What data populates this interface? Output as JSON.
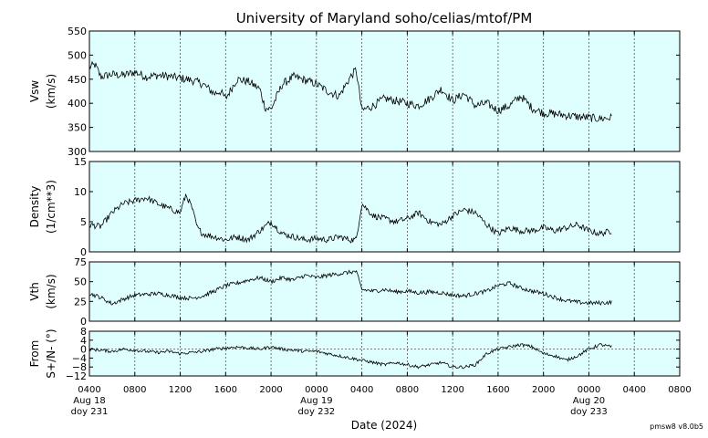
{
  "chart_data": {
    "title": "University of Maryland  soho/celias/mtof/PM",
    "xlabel": "Date (2024)",
    "footer": "pmsw8 v8.0b5",
    "x_ticks": [
      {
        "hour": 0,
        "label": "0400"
      },
      {
        "hour": 4,
        "label": "0800"
      },
      {
        "hour": 8,
        "label": "1200"
      },
      {
        "hour": 12,
        "label": "1600"
      },
      {
        "hour": 16,
        "label": "2000"
      },
      {
        "hour": 20,
        "label": "0000",
        "sub1": "Aug 19",
        "sub2": "doy 232"
      },
      {
        "hour": 24,
        "label": "0400"
      },
      {
        "hour": 28,
        "label": "0800"
      },
      {
        "hour": 32,
        "label": "1200"
      },
      {
        "hour": 36,
        "label": "1600"
      },
      {
        "hour": 40,
        "label": "2000"
      },
      {
        "hour": 44,
        "label": "0000",
        "sub1": "Aug 20",
        "sub2": "doy 233"
      },
      {
        "hour": 48,
        "label": "0400"
      },
      {
        "hour": 52,
        "label": "0800"
      }
    ],
    "first_tick": {
      "sub1": "Aug 18",
      "sub2": "doy 231"
    },
    "x_range_hours": [
      0,
      52
    ],
    "data_end_hour": 46,
    "panels": [
      {
        "type": "line",
        "ylabel_1": "Vsw",
        "ylabel_2": "(km/s)",
        "ylim": [
          300,
          550
        ],
        "yticks": [
          300,
          350,
          400,
          450,
          500,
          550
        ],
        "ytick_labels": [
          "300",
          "350",
          "400",
          "450",
          "500",
          "550"
        ],
        "zero_line": false,
        "x": [
          0,
          0.5,
          1,
          2,
          3,
          4,
          5,
          6,
          7,
          8,
          9,
          10,
          11,
          11.5,
          12,
          13,
          14,
          15,
          15.5,
          16,
          17,
          18,
          19,
          20,
          21,
          22,
          23,
          23.5,
          24,
          25,
          26,
          27,
          28,
          29,
          30,
          31,
          32,
          33,
          34,
          35,
          36,
          37,
          38,
          39,
          40,
          41,
          42,
          43,
          44,
          45,
          46
        ],
        "y": [
          475,
          480,
          455,
          460,
          458,
          465,
          455,
          458,
          456,
          452,
          448,
          440,
          420,
          425,
          410,
          450,
          445,
          430,
          390,
          388,
          440,
          455,
          448,
          440,
          425,
          415,
          455,
          470,
          385,
          395,
          410,
          405,
          400,
          395,
          410,
          430,
          405,
          420,
          395,
          400,
          385,
          395,
          415,
          390,
          380,
          378,
          375,
          372,
          370,
          368,
          370
        ]
      },
      {
        "type": "line",
        "ylabel_1": "Density",
        "ylabel_2": "(1/cm**3)",
        "ylim": [
          0,
          15
        ],
        "yticks": [
          0,
          5,
          10,
          15
        ],
        "ytick_labels": [
          "0",
          "5",
          "10",
          "15"
        ],
        "zero_line": false,
        "x": [
          0,
          1,
          2,
          3,
          4,
          5,
          6,
          7,
          8,
          8.5,
          9,
          9.5,
          10,
          11,
          12,
          13,
          14,
          15,
          16,
          17,
          18,
          19,
          20,
          21,
          22,
          23,
          23.5,
          24,
          25,
          26,
          27,
          28,
          29,
          30,
          31,
          32,
          33,
          34,
          35,
          36,
          37,
          38,
          39,
          40,
          41,
          42,
          43,
          44,
          45,
          46
        ],
        "y": [
          4.5,
          4.2,
          6.5,
          8.0,
          8.5,
          9.0,
          8.0,
          7.2,
          6.5,
          9.5,
          7.5,
          4.0,
          3.0,
          2.5,
          2.0,
          2.5,
          2.0,
          3.5,
          5.0,
          3.0,
          2.5,
          2.0,
          2.2,
          2.0,
          2.5,
          2.0,
          2.0,
          8.0,
          6.0,
          5.5,
          5.0,
          5.5,
          6.5,
          5.0,
          4.5,
          6.0,
          7.0,
          6.5,
          4.5,
          3.0,
          4.0,
          3.5,
          3.5,
          4.0,
          3.5,
          4.0,
          4.5,
          3.5,
          3.0,
          3.5
        ]
      },
      {
        "type": "line",
        "ylabel_1": "Vth",
        "ylabel_2": "(km/s)",
        "ylim": [
          0,
          75
        ],
        "yticks": [
          0,
          25,
          50,
          75
        ],
        "ytick_labels": [
          "0",
          "25",
          "50",
          "75"
        ],
        "zero_line": false,
        "x": [
          0,
          1,
          2,
          3,
          4,
          5,
          6,
          7,
          8,
          9,
          10,
          11,
          12,
          13,
          14,
          15,
          16,
          17,
          18,
          19,
          20,
          21,
          22,
          23,
          23.5,
          24,
          25,
          26,
          27,
          28,
          29,
          30,
          31,
          32,
          33,
          34,
          35,
          36,
          37,
          38,
          39,
          40,
          41,
          42,
          43,
          44,
          45,
          46
        ],
        "y": [
          35,
          30,
          22,
          28,
          33,
          34,
          35,
          33,
          30,
          29,
          32,
          38,
          45,
          48,
          52,
          55,
          50,
          55,
          52,
          58,
          55,
          58,
          60,
          62,
          63,
          40,
          38,
          40,
          37,
          38,
          36,
          37,
          36,
          33,
          32,
          35,
          38,
          45,
          48,
          42,
          38,
          35,
          30,
          26,
          24,
          23,
          23,
          24
        ]
      },
      {
        "type": "line",
        "ylabel_1": "From",
        "ylabel_2": "S+/N- (°)",
        "ylim": [
          -12,
          8
        ],
        "yticks": [
          -12,
          -8,
          -4,
          0,
          4,
          8
        ],
        "ytick_labels": [
          "−12",
          "−8",
          "−4",
          "0",
          "4",
          "8"
        ],
        "zero_line": true,
        "x": [
          0,
          1,
          2,
          3,
          4,
          5,
          6,
          7,
          8,
          9,
          10,
          11,
          12,
          13,
          14,
          15,
          16,
          17,
          18,
          19,
          20,
          21,
          22,
          23,
          24,
          25,
          26,
          27,
          28,
          29,
          30,
          31,
          32,
          33,
          34,
          35,
          36,
          37,
          38,
          39,
          40,
          41,
          42,
          43,
          44,
          45,
          46
        ],
        "y": [
          0,
          -0.5,
          -1,
          0,
          -0.5,
          -1,
          -1.5,
          -1,
          -2,
          -1.5,
          -1,
          0,
          0.5,
          1,
          0.5,
          0,
          1,
          0,
          -0.5,
          -1,
          -1,
          -2,
          -3,
          -4,
          -5,
          -6,
          -7,
          -6,
          -7,
          -8,
          -7,
          -6,
          -8,
          -8,
          -7,
          -2,
          0,
          1,
          2,
          1,
          -2,
          -3,
          -5,
          -3,
          0,
          2,
          1
        ]
      }
    ]
  }
}
